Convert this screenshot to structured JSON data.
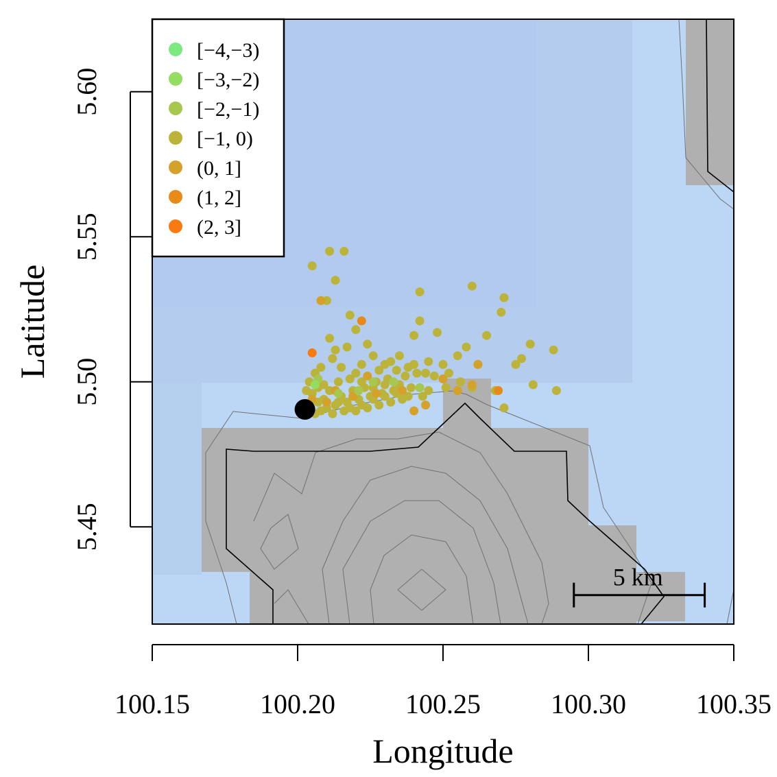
{
  "chart_data": {
    "type": "scatter",
    "xlabel": "Longitude",
    "ylabel": "Latitude",
    "xlim": [
      100.15,
      100.35
    ],
    "ylim": [
      5.4165,
      5.625
    ],
    "x_ticks": [
      100.15,
      100.2,
      100.25,
      100.3,
      100.35
    ],
    "x_tick_labels": [
      "100.15",
      "100.20",
      "100.25",
      "100.30",
      "100.35"
    ],
    "y_ticks": [
      5.45,
      5.5,
      5.55,
      5.6
    ],
    "y_tick_labels": [
      "5.45",
      "5.50",
      "5.55",
      "5.60"
    ],
    "grid": false,
    "legend_position": "top-left",
    "legend": [
      {
        "label": "[−4,−3)",
        "color": "#7de87e"
      },
      {
        "label": "[−3,−2)",
        "color": "#95dc62"
      },
      {
        "label": "[−2,−1)",
        "color": "#a6c84f"
      },
      {
        "label": "[−1, 0)",
        "color": "#bcb43a"
      },
      {
        "label": "(0, 1]",
        "color": "#d4a22a"
      },
      {
        "label": "(1, 2]",
        "color": "#e88a1a"
      },
      {
        "label": "(2, 3]",
        "color": "#f97a10"
      }
    ],
    "scale_bar": {
      "label": "5 km",
      "lon_start": 100.295,
      "lon_end": 100.34,
      "lat": 5.4265
    },
    "reference_point": {
      "lon": 100.2025,
      "lat": 5.4905
    },
    "background_colors": {
      "water_light": "#bcd6f5",
      "water_dark": "#adc7ea",
      "land": "#b0b0b0"
    },
    "series": [
      {
        "bin": "[−1, 0)",
        "color": "#bcb43a",
        "points": [
          [
            100.205,
            5.54
          ],
          [
            100.211,
            5.545
          ],
          [
            100.216,
            5.545
          ],
          [
            100.213,
            5.535
          ],
          [
            100.21,
            5.528
          ],
          [
            100.218,
            5.523
          ],
          [
            100.22,
            5.518
          ],
          [
            100.242,
            5.531
          ],
          [
            100.26,
            5.533
          ],
          [
            100.271,
            5.529
          ],
          [
            100.27,
            5.524
          ],
          [
            100.242,
            5.521
          ],
          [
            100.265,
            5.516
          ],
          [
            100.248,
            5.517
          ],
          [
            100.24,
            5.516
          ],
          [
            100.211,
            5.515
          ],
          [
            100.224,
            5.513
          ],
          [
            100.258,
            5.512
          ],
          [
            100.255,
            5.509
          ],
          [
            100.245,
            5.507
          ],
          [
            100.235,
            5.509
          ],
          [
            100.24,
            5.506
          ],
          [
            100.232,
            5.507
          ],
          [
            100.228,
            5.504
          ],
          [
            100.222,
            5.506
          ],
          [
            100.22,
            5.503
          ],
          [
            100.215,
            5.505
          ],
          [
            100.212,
            5.508
          ],
          [
            100.208,
            5.505
          ],
          [
            100.206,
            5.503
          ],
          [
            100.204,
            5.5
          ],
          [
            100.205,
            5.496
          ],
          [
            100.207,
            5.498
          ],
          [
            100.209,
            5.494
          ],
          [
            100.211,
            5.497
          ],
          [
            100.213,
            5.492
          ],
          [
            100.215,
            5.495
          ],
          [
            100.217,
            5.493
          ],
          [
            100.219,
            5.497
          ],
          [
            100.221,
            5.494
          ],
          [
            100.223,
            5.498
          ],
          [
            100.225,
            5.495
          ],
          [
            100.227,
            5.5
          ],
          [
            100.229,
            5.496
          ],
          [
            100.231,
            5.501
          ],
          [
            100.233,
            5.497
          ],
          [
            100.235,
            5.499
          ],
          [
            100.237,
            5.502
          ],
          [
            100.239,
            5.498
          ],
          [
            100.241,
            5.503
          ],
          [
            100.236,
            5.494
          ],
          [
            100.232,
            5.493
          ],
          [
            100.228,
            5.492
          ],
          [
            100.224,
            5.491
          ],
          [
            100.22,
            5.49
          ],
          [
            100.216,
            5.49
          ],
          [
            100.212,
            5.489
          ],
          [
            100.208,
            5.49
          ],
          [
            100.204,
            5.492
          ],
          [
            100.206,
            5.489
          ],
          [
            100.21,
            5.491
          ],
          [
            100.214,
            5.493
          ],
          [
            100.218,
            5.491
          ],
          [
            100.222,
            5.492
          ],
          [
            100.226,
            5.494
          ],
          [
            100.23,
            5.495
          ],
          [
            100.234,
            5.496
          ],
          [
            100.238,
            5.495
          ],
          [
            100.243,
            5.495
          ],
          [
            100.247,
            5.502
          ],
          [
            100.25,
            5.506
          ],
          [
            100.252,
            5.503
          ],
          [
            100.256,
            5.5
          ],
          [
            100.262,
            5.506
          ],
          [
            100.268,
            5.497
          ],
          [
            100.275,
            5.506
          ],
          [
            100.277,
            5.508
          ],
          [
            100.28,
            5.513
          ],
          [
            100.281,
            5.499
          ],
          [
            100.289,
            5.497
          ],
          [
            100.288,
            5.511
          ],
          [
            100.271,
            5.491
          ],
          [
            100.26,
            5.498
          ],
          [
            100.251,
            5.498
          ],
          [
            100.245,
            5.497
          ],
          [
            100.213,
            5.511
          ],
          [
            100.217,
            5.512
          ],
          [
            100.226,
            5.509
          ],
          [
            100.23,
            5.506
          ],
          [
            100.234,
            5.504
          ],
          [
            100.238,
            5.505
          ],
          [
            100.244,
            5.503
          ],
          [
            100.209,
            5.499
          ],
          [
            100.214,
            5.5
          ],
          [
            100.218,
            5.501
          ],
          [
            100.222,
            5.5
          ],
          [
            100.226,
            5.498
          ],
          [
            100.23,
            5.499
          ],
          [
            100.203,
            5.497
          ],
          [
            100.207,
            5.493
          ]
        ]
      },
      {
        "bin": "(0, 1]",
        "color": "#d4a22a",
        "points": [
          [
            100.208,
            5.528
          ],
          [
            100.224,
            5.502
          ],
          [
            100.236,
            5.497
          ],
          [
            100.24,
            5.49
          ],
          [
            100.25,
            5.501
          ],
          [
            100.262,
            5.506
          ],
          [
            100.227,
            5.496
          ],
          [
            100.213,
            5.497
          ],
          [
            100.21,
            5.493
          ],
          [
            100.255,
            5.497
          ],
          [
            100.244,
            5.492
          ],
          [
            100.26,
            5.499
          ],
          [
            100.205,
            5.494
          ],
          [
            100.219,
            5.495
          ]
        ]
      },
      {
        "bin": "(1, 2]",
        "color": "#e88a1a",
        "points": [
          [
            100.222,
            5.521
          ],
          [
            100.269,
            5.497
          ]
        ]
      },
      {
        "bin": "(2, 3]",
        "color": "#f97a10",
        "points": [
          [
            100.205,
            5.51
          ]
        ]
      },
      {
        "bin": "[−2,−1)",
        "color": "#a6c84f",
        "points": [
          [
            100.207,
            5.501
          ],
          [
            100.214,
            5.496
          ],
          [
            100.221,
            5.497
          ],
          [
            100.233,
            5.5
          ],
          [
            100.242,
            5.498
          ],
          [
            100.226,
            5.5
          ]
        ]
      },
      {
        "bin": "[−3,−2)",
        "color": "#95dc62",
        "points": [
          [
            100.206,
            5.499
          ]
        ]
      }
    ]
  }
}
